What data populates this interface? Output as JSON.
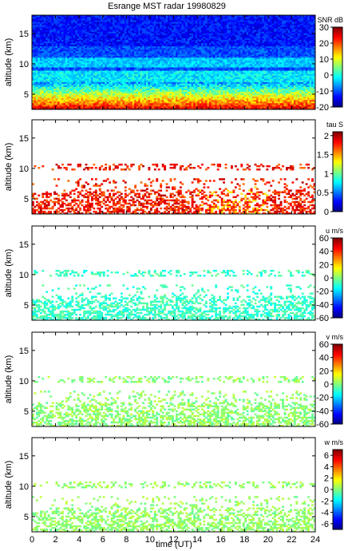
{
  "chart_data": [
    {
      "type": "heatmap",
      "title": "Esrange MST radar 19980829",
      "xlabel": "",
      "ylabel": "altitude (km)",
      "xlim": [
        0,
        24
      ],
      "ylim": [
        2.5,
        18
      ],
      "yticks": [
        5,
        10,
        15
      ],
      "colorbar": {
        "label": "SNR dB",
        "ticks": [
          30,
          20,
          10,
          0,
          -10,
          -20
        ],
        "range": [
          -20,
          30
        ]
      },
      "field": "snr"
    },
    {
      "type": "heatmap",
      "title": "",
      "xlabel": "",
      "ylabel": "altitude (km)",
      "xlim": [
        0,
        24
      ],
      "ylim": [
        2.5,
        18
      ],
      "yticks": [
        5,
        10,
        15
      ],
      "colorbar": {
        "label": "tau S",
        "ticks": [
          2,
          1.5,
          1,
          0.5,
          0
        ],
        "range": [
          0,
          2.1
        ]
      },
      "field": "tau"
    },
    {
      "type": "heatmap",
      "title": "",
      "xlabel": "",
      "ylabel": "altitude (km)",
      "xlim": [
        0,
        24
      ],
      "ylim": [
        2.5,
        18
      ],
      "yticks": [
        5,
        10,
        15
      ],
      "colorbar": {
        "label": "u m/s",
        "ticks": [
          60,
          40,
          20,
          0,
          -20,
          -40,
          -60
        ],
        "range": [
          -60,
          60
        ]
      },
      "field": "u"
    },
    {
      "type": "heatmap",
      "title": "",
      "xlabel": "",
      "ylabel": "altitude (km)",
      "xlim": [
        0,
        24
      ],
      "ylim": [
        2.5,
        18
      ],
      "yticks": [
        5,
        10,
        15
      ],
      "colorbar": {
        "label": "v m/s",
        "ticks": [
          60,
          40,
          20,
          0,
          -20,
          -40,
          -60
        ],
        "range": [
          -60,
          60
        ]
      },
      "field": "v"
    },
    {
      "type": "heatmap",
      "title": "",
      "xlabel": "time (UT)",
      "ylabel": "altitude (km)",
      "xlim": [
        0,
        24
      ],
      "ylim": [
        2.5,
        18
      ],
      "yticks": [
        5,
        10,
        15
      ],
      "xticks": [
        0,
        2,
        4,
        6,
        8,
        10,
        12,
        14,
        16,
        18,
        20,
        22,
        24
      ],
      "colorbar": {
        "label": "w m/s",
        "ticks": [
          6,
          4,
          2,
          0,
          -2,
          -4,
          -6
        ],
        "range": [
          -7,
          7
        ]
      },
      "field": "w"
    }
  ]
}
